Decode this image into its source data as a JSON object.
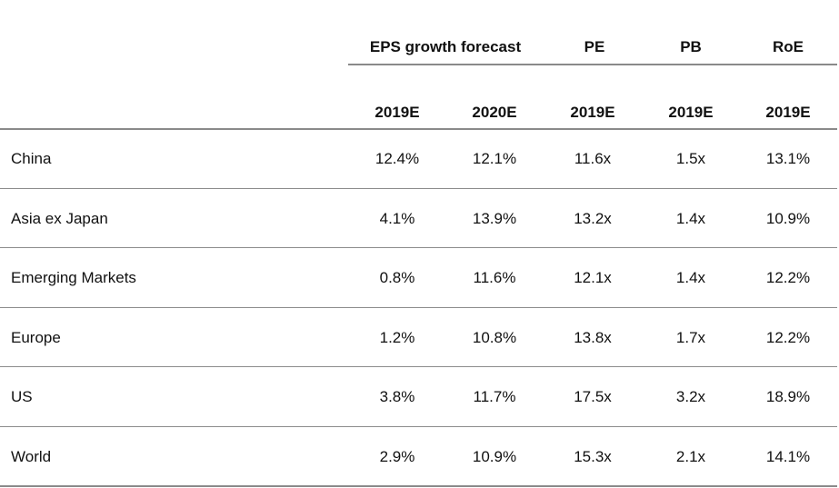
{
  "header": {
    "groups": {
      "eps_growth": "EPS growth forecast",
      "pe": "PE",
      "pb": "PB",
      "roe": "RoE"
    },
    "years": [
      "2019E",
      "2020E",
      "2019E",
      "2019E",
      "2019E"
    ]
  },
  "rows": [
    {
      "region": "China",
      "eps_2019": "12.4%",
      "eps_2020": "12.1%",
      "pe_2019": "11.6x",
      "pb_2019": "1.5x",
      "roe_2019": "13.1%"
    },
    {
      "region": "Asia ex Japan",
      "eps_2019": "4.1%",
      "eps_2020": "13.9%",
      "pe_2019": "13.2x",
      "pb_2019": "1.4x",
      "roe_2019": "10.9%"
    },
    {
      "region": "Emerging Markets",
      "eps_2019": "0.8%",
      "eps_2020": "11.6%",
      "pe_2019": "12.1x",
      "pb_2019": "1.4x",
      "roe_2019": "12.2%"
    },
    {
      "region": "Europe",
      "eps_2019": "1.2%",
      "eps_2020": "10.8%",
      "pe_2019": "13.8x",
      "pb_2019": "1.7x",
      "roe_2019": "12.2%"
    },
    {
      "region": "US",
      "eps_2019": "3.8%",
      "eps_2020": "11.7%",
      "pe_2019": "17.5x",
      "pb_2019": "3.2x",
      "roe_2019": "18.9%"
    },
    {
      "region": "World",
      "eps_2019": "2.9%",
      "eps_2020": "10.9%",
      "pe_2019": "15.3x",
      "pb_2019": "2.1x",
      "roe_2019": "14.1%"
    }
  ]
}
